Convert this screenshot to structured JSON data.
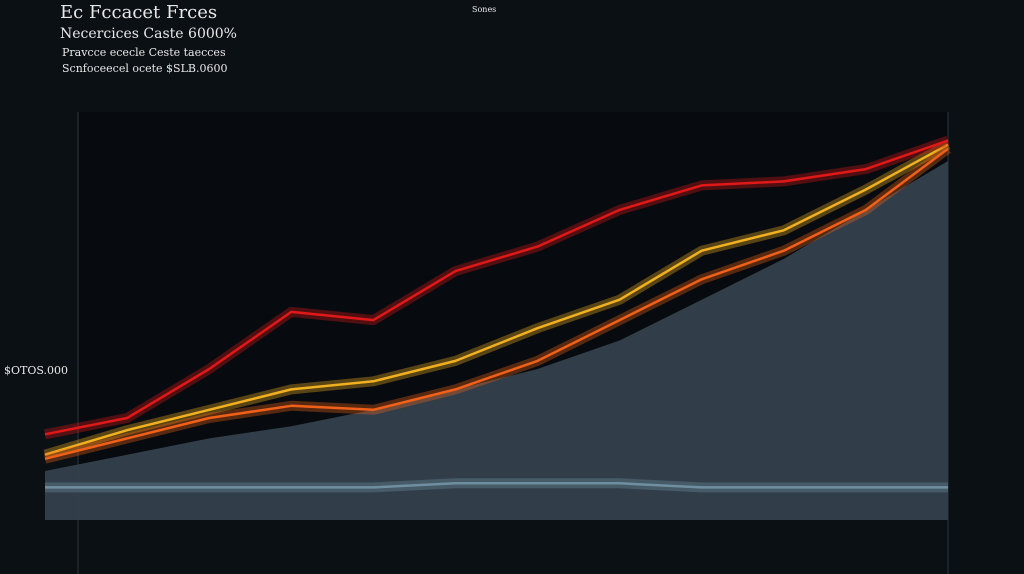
{
  "chart_data": {
    "type": "line",
    "title": "Ec Fccacet Frces",
    "subtitle": "Necercices Caste 6000%",
    "notes": [
      "Pravcce ececle Ceste taecces",
      "Scnfoceecel ocete $SLB.0600",
      "Sones"
    ],
    "y_label": "$OTOS.000",
    "categories": [
      null,
      null,
      null,
      null,
      null,
      null,
      null,
      null,
      null,
      null,
      null,
      null
    ],
    "ylim": [
      0,
      100
    ],
    "series": [
      {
        "color": "#34414d",
        "fill": true,
        "values": [
          12,
          16,
          20,
          23,
          27,
          32,
          37,
          44,
          54,
          64,
          76,
          88
        ]
      },
      {
        "color": "#f0b020",
        "values": [
          16,
          22,
          27,
          32,
          34,
          39,
          47,
          54,
          66,
          71,
          81,
          92
        ]
      },
      {
        "color": "#f06018",
        "values": [
          15,
          20,
          25,
          28,
          27,
          32,
          39,
          49,
          59,
          66,
          76,
          91
        ]
      },
      {
        "color": "#e01818",
        "values": [
          21,
          25,
          37,
          51,
          49,
          61,
          67,
          76,
          82,
          83,
          86,
          93
        ]
      },
      {
        "color": "#6f8fa0",
        "values": [
          8,
          8,
          8,
          8,
          8,
          9,
          9,
          9,
          8,
          8,
          8,
          8
        ]
      }
    ]
  }
}
